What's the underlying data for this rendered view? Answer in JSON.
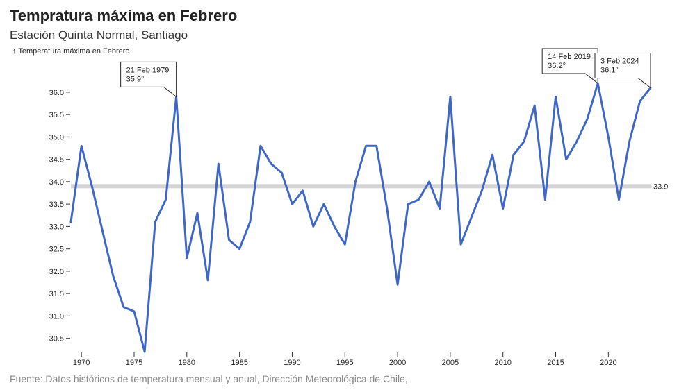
{
  "header": {
    "title": "Tempratura máxima en Febrero",
    "subtitle": "Estación Quinta Normal, Santiago"
  },
  "footer": {
    "source": "Fuente: Datos históricos de temperatura mensual y anual, Dirección Meteorológica de Chile,"
  },
  "chart_data": {
    "type": "line",
    "title": "Tempratura máxima en Febrero",
    "subtitle": "Estación Quinta Normal, Santiago",
    "ylabel": "↑ Temperatura máxima en Febrero",
    "xlabel": "",
    "xlim": [
      1969,
      2024
    ],
    "ylim": [
      30.2,
      36.2
    ],
    "x_ticks": [
      1970,
      1975,
      1980,
      1985,
      1990,
      1995,
      2000,
      2005,
      2010,
      2015,
      2020
    ],
    "y_ticks": [
      "30.5",
      "31.0",
      "31.5",
      "32.0",
      "32.5",
      "33.0",
      "33.5",
      "34.0",
      "34.5",
      "35.0",
      "35.5",
      "36.0"
    ],
    "grid": false,
    "line_color": "#3e67c8",
    "reference_line": {
      "value": 33.9,
      "label": "33.9",
      "color": "#d4d4d4"
    },
    "series": [
      {
        "x": [
          1969,
          1970,
          1971,
          1972,
          1973,
          1974,
          1975,
          1976,
          1977,
          1978,
          1979,
          1980,
          1981,
          1982,
          1983,
          1984,
          1985,
          1986,
          1987,
          1988,
          1989,
          1990,
          1991,
          1992,
          1993,
          1994,
          1995,
          1996,
          1997,
          1998,
          1999,
          2000,
          2001,
          2002,
          2003,
          2004,
          2005,
          2006,
          2007,
          2008,
          2009,
          2010,
          2011,
          2012,
          2013,
          2014,
          2015,
          2016,
          2017,
          2018,
          2019,
          2020,
          2021,
          2022,
          2023,
          2024
        ],
        "y": [
          33.1,
          34.8,
          33.9,
          32.9,
          31.9,
          31.2,
          31.1,
          30.2,
          33.1,
          33.6,
          35.9,
          32.3,
          33.3,
          31.8,
          34.4,
          32.7,
          32.5,
          33.1,
          34.8,
          34.4,
          34.2,
          33.5,
          33.8,
          33.0,
          33.5,
          33.0,
          32.6,
          34.0,
          34.8,
          34.8,
          33.4,
          31.7,
          33.5,
          33.6,
          34.0,
          33.4,
          35.9,
          32.6,
          33.2,
          33.8,
          34.6,
          33.4,
          34.6,
          34.9,
          35.7,
          33.6,
          35.9,
          34.5,
          34.9,
          35.4,
          36.2,
          35.0,
          33.6,
          34.9,
          35.8,
          36.1
        ]
      }
    ],
    "annotations": [
      {
        "x": 1979,
        "y": 35.9,
        "date": "21 Feb 1979",
        "value": "35.9°"
      },
      {
        "x": 2019,
        "y": 36.2,
        "date": "14 Feb 2019",
        "value": "36.2°"
      },
      {
        "x": 2024,
        "y": 36.1,
        "date": "3 Feb 2024",
        "value": "36.1°"
      }
    ]
  }
}
